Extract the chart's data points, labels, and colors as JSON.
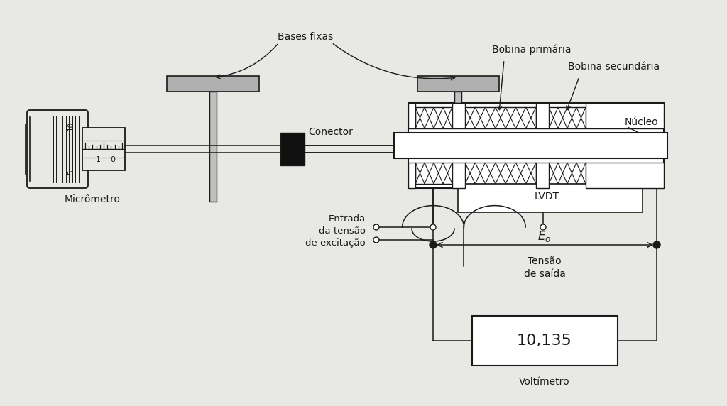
{
  "bg_color": "#c8c8c8",
  "paper_color": "#e8e8e4",
  "line_color": "#1a1a1a",
  "labels": {
    "bases_fixas": "Bases fixas",
    "bobina_primaria": "Bobina primária",
    "bobina_secundaria": "Bobina secundária",
    "nucleo": "Núcleo",
    "conector": "Conector",
    "micrometro": "Micrômetro",
    "entrada_tensao": "Entrada\nda tensão\nde excitação",
    "lvdt": "LVDT",
    "eo": "$E_o$",
    "tensao_saida": "Tensão\nde saída",
    "voltimetro": "Voltímetro",
    "voltimetro_value": "10,135"
  }
}
